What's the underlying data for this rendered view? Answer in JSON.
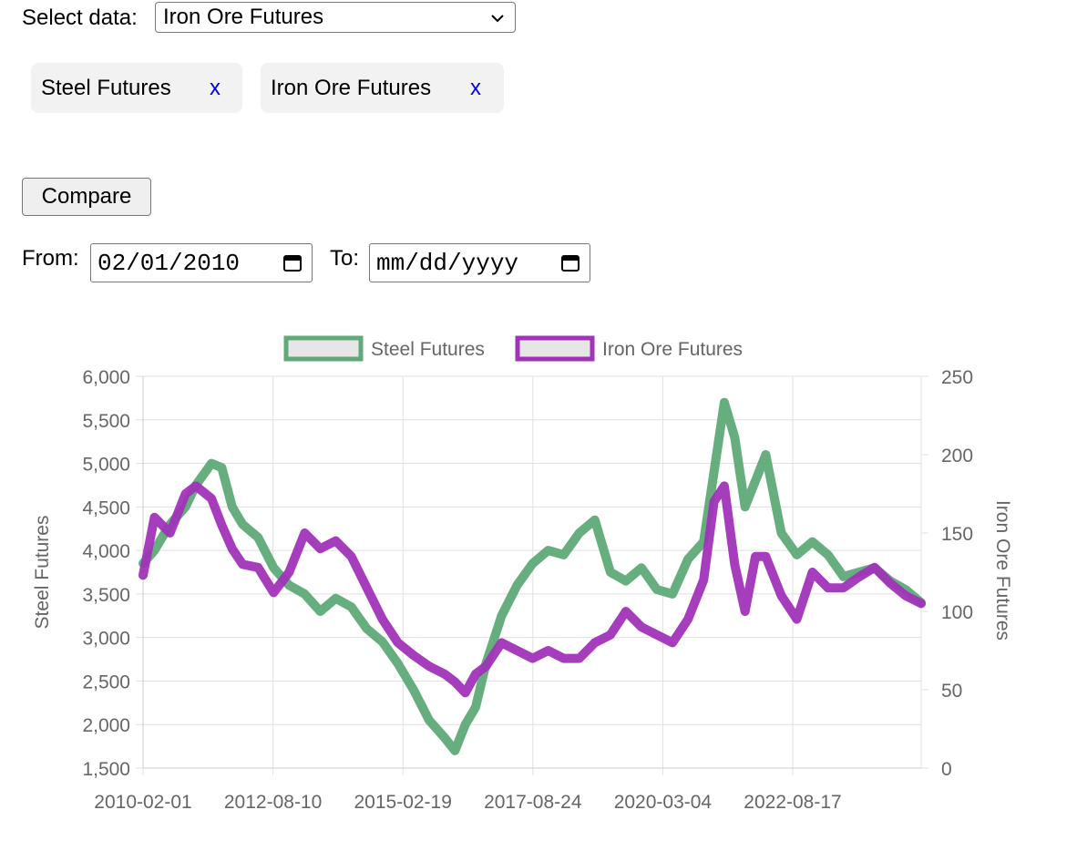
{
  "select": {
    "label": "Select data:",
    "value": "Iron Ore Futures"
  },
  "chips": [
    {
      "label": "Steel Futures",
      "remove": "x"
    },
    {
      "label": "Iron Ore Futures",
      "remove": "x"
    }
  ],
  "compare_label": "Compare",
  "dates": {
    "from_label": "From:",
    "from_value": "02/01/2010",
    "to_label": "To:",
    "to_placeholder": "mm/dd/yyyy"
  },
  "icons": {
    "dropdown": "chevron-down-icon",
    "calendar": "calendar-icon"
  },
  "chart_data": {
    "type": "line",
    "legend": "top",
    "grid": true,
    "xlabel": "",
    "x_ticks": [
      "2010-02-01",
      "2012-08-10",
      "2015-02-19",
      "2017-08-24",
      "2020-03-04",
      "2022-08-17"
    ],
    "x_range": [
      2010.08,
      2025.1
    ],
    "left_axis": {
      "label": "Steel Futures",
      "range": [
        1500,
        6000
      ],
      "ticks": [
        "1,500",
        "2,000",
        "2,500",
        "3,000",
        "3,500",
        "4,000",
        "4,500",
        "5,000",
        "5,500",
        "6,000"
      ]
    },
    "right_axis": {
      "label": "Iron Ore Futures",
      "range": [
        0,
        250
      ],
      "ticks": [
        "0",
        "50",
        "100",
        "150",
        "200",
        "250"
      ]
    },
    "series": [
      {
        "name": "Steel Futures",
        "axis": "left",
        "color": "#5faa78",
        "x": [
          2010.08,
          2010.3,
          2010.6,
          2010.9,
          2011.1,
          2011.4,
          2011.6,
          2011.8,
          2012.0,
          2012.3,
          2012.6,
          2012.9,
          2013.2,
          2013.5,
          2013.8,
          2014.1,
          2014.4,
          2014.7,
          2015.0,
          2015.3,
          2015.6,
          2015.9,
          2016.1,
          2016.3,
          2016.5,
          2016.7,
          2017.0,
          2017.3,
          2017.6,
          2017.9,
          2018.2,
          2018.5,
          2018.8,
          2019.1,
          2019.4,
          2019.7,
          2020.0,
          2020.3,
          2020.6,
          2020.9,
          2021.1,
          2021.3,
          2021.5,
          2021.7,
          2021.9,
          2022.1,
          2022.4,
          2022.7,
          2023.0,
          2023.3,
          2023.6,
          2023.9,
          2024.2,
          2024.5,
          2024.8,
          2025.1
        ],
        "y": [
          3850,
          4000,
          4300,
          4500,
          4750,
          5000,
          4950,
          4500,
          4300,
          4150,
          3800,
          3600,
          3500,
          3300,
          3450,
          3350,
          3100,
          2950,
          2700,
          2400,
          2050,
          1850,
          1700,
          2000,
          2200,
          2700,
          3250,
          3600,
          3850,
          4000,
          3950,
          4200,
          4350,
          3750,
          3650,
          3800,
          3550,
          3500,
          3900,
          4100,
          4900,
          5700,
          5300,
          4500,
          4800,
          5100,
          4200,
          3950,
          4100,
          3950,
          3700,
          3750,
          3800,
          3650,
          3550,
          3400
        ]
      },
      {
        "name": "Iron Ore Futures",
        "axis": "right",
        "color": "#a033b8",
        "x": [
          2010.08,
          2010.3,
          2010.6,
          2010.9,
          2011.1,
          2011.4,
          2011.6,
          2011.8,
          2012.0,
          2012.3,
          2012.6,
          2012.9,
          2013.2,
          2013.5,
          2013.8,
          2014.1,
          2014.4,
          2014.7,
          2015.0,
          2015.3,
          2015.6,
          2015.9,
          2016.1,
          2016.3,
          2016.5,
          2016.7,
          2017.0,
          2017.3,
          2017.6,
          2017.9,
          2018.2,
          2018.5,
          2018.8,
          2019.1,
          2019.4,
          2019.7,
          2020.0,
          2020.3,
          2020.6,
          2020.9,
          2021.1,
          2021.3,
          2021.5,
          2021.7,
          2021.9,
          2022.1,
          2022.4,
          2022.7,
          2023.0,
          2023.3,
          2023.6,
          2023.9,
          2024.2,
          2024.5,
          2024.8,
          2025.1
        ],
        "y": [
          123,
          160,
          150,
          175,
          180,
          172,
          155,
          140,
          130,
          128,
          112,
          125,
          150,
          140,
          145,
          135,
          115,
          95,
          80,
          72,
          65,
          60,
          55,
          48,
          60,
          65,
          80,
          75,
          70,
          75,
          70,
          70,
          80,
          85,
          100,
          90,
          85,
          80,
          95,
          120,
          170,
          180,
          130,
          100,
          135,
          135,
          110,
          95,
          125,
          115,
          115,
          122,
          128,
          118,
          110,
          105
        ]
      }
    ]
  }
}
